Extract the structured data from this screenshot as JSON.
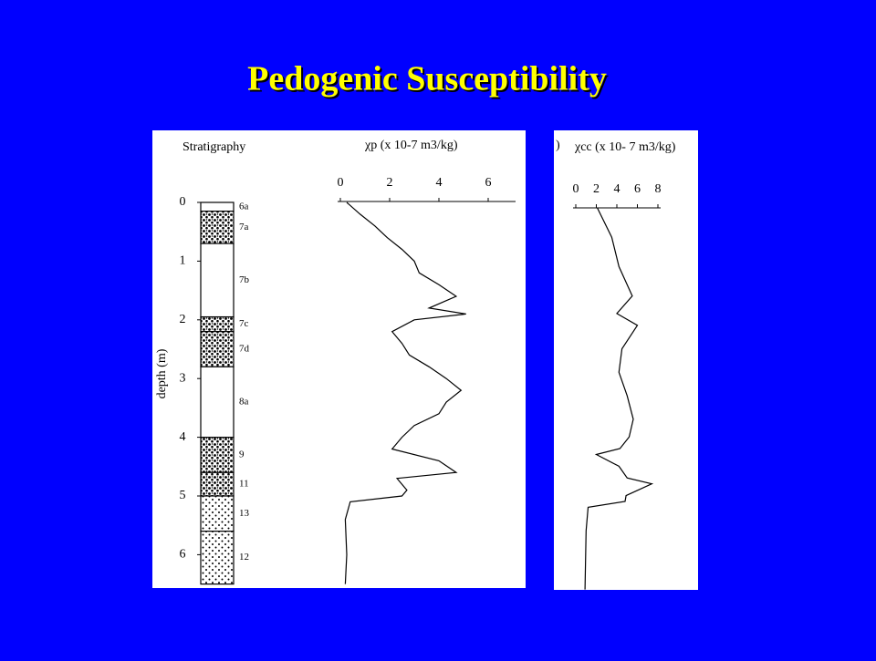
{
  "slide_title": "Pedogenic Susceptibility",
  "stratigraphy": {
    "title": "Stratigraphy",
    "ylabel": "depth (m)",
    "ylim": [
      0,
      6.5
    ],
    "yticks": [
      0,
      1,
      2,
      3,
      4,
      5,
      6
    ],
    "layers": [
      {
        "label": "6a",
        "top": 0,
        "bottom": 0.15,
        "pattern": "none"
      },
      {
        "label": "7a",
        "top": 0.15,
        "bottom": 0.7,
        "pattern": "dense"
      },
      {
        "label": "7b",
        "top": 0.7,
        "bottom": 1.95,
        "pattern": "none"
      },
      {
        "label": "7c",
        "top": 1.95,
        "bottom": 2.2,
        "pattern": "dense"
      },
      {
        "label": "7d",
        "top": 2.2,
        "bottom": 2.8,
        "pattern": "dense"
      },
      {
        "label": "8a",
        "top": 2.8,
        "bottom": 4.0,
        "pattern": "none"
      },
      {
        "label": "9",
        "top": 4.0,
        "bottom": 4.6,
        "pattern": "dense"
      },
      {
        "label": "11",
        "top": 4.6,
        "bottom": 5.0,
        "pattern": "dense"
      },
      {
        "label": "13",
        "top": 5.0,
        "bottom": 5.6,
        "pattern": "sparse"
      },
      {
        "label": "12",
        "top": 5.6,
        "bottom": 6.5,
        "pattern": "sparse"
      }
    ]
  },
  "chart_data": [
    {
      "type": "line",
      "xlabel": "χp (x 10-7 m3/kg)",
      "xlim": [
        0,
        7
      ],
      "xticks": [
        0,
        2,
        4,
        6
      ],
      "ylim": [
        0,
        6.5
      ],
      "color": "#000000",
      "x": [
        0,
        0.2,
        0.4,
        0.6,
        0.8,
        1.0,
        1.2,
        1.4,
        1.6,
        1.8,
        1.9,
        2.0,
        2.2,
        2.4,
        2.6,
        2.8,
        3.0,
        3.2,
        3.4,
        3.6,
        3.8,
        4.0,
        4.2,
        4.4,
        4.6,
        4.7,
        4.9,
        5.0,
        5.1,
        5.4,
        6.0,
        6.5
      ],
      "values": [
        0.26,
        0.8,
        1.4,
        1.9,
        2.5,
        3.0,
        3.2,
        4.0,
        4.7,
        3.6,
        5.1,
        3.0,
        2.1,
        2.5,
        2.8,
        3.6,
        4.3,
        4.9,
        4.3,
        4.0,
        3.0,
        2.5,
        2.1,
        4.0,
        4.7,
        2.3,
        2.7,
        2.5,
        0.4,
        0.2,
        0.26,
        0.2
      ]
    },
    {
      "type": "line",
      "xlabel": "χcc (x 10- 7 m3/kg)",
      "cropped_text": ")",
      "xlim": [
        0,
        8
      ],
      "xticks": [
        0,
        2,
        4,
        6,
        8
      ],
      "ylim": [
        0,
        6.5
      ],
      "color": "#000000",
      "x": [
        0,
        0.5,
        1.0,
        1.5,
        1.8,
        2.0,
        2.4,
        2.8,
        3.2,
        3.6,
        3.9,
        4.1,
        4.2,
        4.4,
        4.6,
        4.7,
        4.9,
        5.0,
        5.1,
        5.5,
        6.5
      ],
      "values": [
        2.1,
        3.5,
        4.2,
        5.5,
        4.0,
        6.0,
        4.5,
        4.2,
        5.0,
        5.6,
        5.2,
        4.3,
        2.0,
        4.2,
        5.0,
        7.4,
        4.9,
        4.8,
        1.2,
        1.0,
        0.9
      ]
    }
  ]
}
